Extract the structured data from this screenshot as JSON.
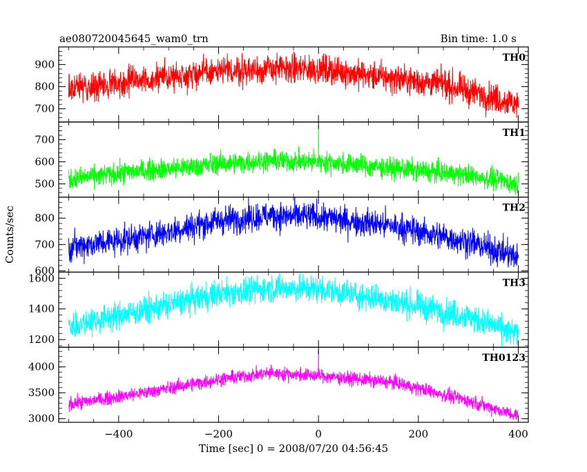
{
  "header": {
    "title": "ae080720045645_wam0_trn",
    "bin_time": "Bin time: 1.0 s"
  },
  "axes": {
    "xlabel": "Time [sec] 0 = 2008/07/20 04:56:45",
    "ylabel": "Counts/sec",
    "xlim": [
      -520,
      420
    ],
    "xticks": [
      -400,
      -200,
      0,
      200,
      400
    ],
    "xtick_labels": [
      "−400",
      "−200",
      "0",
      "200",
      "400"
    ]
  },
  "chart_data": {
    "type": "line",
    "x_range": [
      -500,
      400
    ],
    "bin_time_s": 1.0,
    "panels": [
      {
        "name": "TH0",
        "color": "#ff0000",
        "ylim": [
          640,
          980
        ],
        "yticks": [
          700,
          800,
          900
        ],
        "profile": [
          [
            -500,
            790
          ],
          [
            -350,
            830
          ],
          [
            -250,
            860
          ],
          [
            -100,
            880
          ],
          [
            0,
            880
          ],
          [
            100,
            850
          ],
          [
            250,
            810
          ],
          [
            400,
            720
          ]
        ],
        "noise": 55,
        "spike": null
      },
      {
        "name": "TH1",
        "color": "#00ff00",
        "ylim": [
          440,
          780
        ],
        "yticks": [
          500,
          600,
          700
        ],
        "profile": [
          [
            -500,
            520
          ],
          [
            -350,
            560
          ],
          [
            -200,
            590
          ],
          [
            -100,
            605
          ],
          [
            0,
            600
          ],
          [
            150,
            570
          ],
          [
            300,
            540
          ],
          [
            400,
            500
          ]
        ],
        "noise": 40,
        "spike": {
          "x": 0,
          "y": 765
        }
      },
      {
        "name": "TH2",
        "color": "#0000ff",
        "ylim": [
          595,
          880
        ],
        "yticks": [
          600,
          700,
          800
        ],
        "profile": [
          [
            -500,
            690
          ],
          [
            -350,
            730
          ],
          [
            -200,
            790
          ],
          [
            -100,
            810
          ],
          [
            0,
            805
          ],
          [
            150,
            770
          ],
          [
            300,
            710
          ],
          [
            400,
            650
          ]
        ],
        "noise": 45,
        "spike": null
      },
      {
        "name": "TH3",
        "color": "#00ffff",
        "ylim": [
          1150,
          1640
        ],
        "yticks": [
          1200,
          1400,
          1600
        ],
        "profile": [
          [
            -500,
            1290
          ],
          [
            -350,
            1390
          ],
          [
            -200,
            1500
          ],
          [
            -100,
            1535
          ],
          [
            0,
            1530
          ],
          [
            150,
            1450
          ],
          [
            300,
            1350
          ],
          [
            400,
            1230
          ]
        ],
        "noise": 75,
        "spike": null
      },
      {
        "name": "TH0123",
        "color": "#ff00ff",
        "ylim": [
          2930,
          4380
        ],
        "yticks": [
          3000,
          3500,
          4000
        ],
        "profile": [
          [
            -500,
            3280
          ],
          [
            -350,
            3500
          ],
          [
            -200,
            3760
          ],
          [
            -100,
            3880
          ],
          [
            0,
            3830
          ],
          [
            150,
            3700
          ],
          [
            300,
            3350
          ],
          [
            400,
            3050
          ]
        ],
        "noise": 110,
        "spike": {
          "x": 0,
          "y": 4330
        }
      }
    ]
  }
}
